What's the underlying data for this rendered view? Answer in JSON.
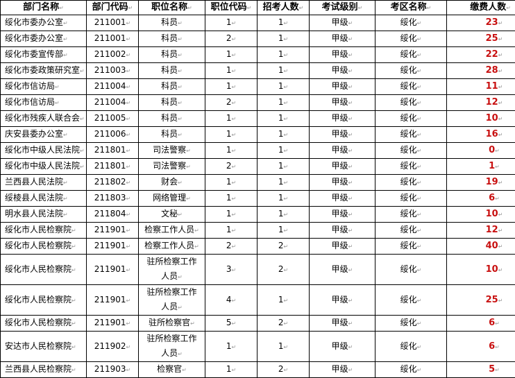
{
  "table": {
    "headers": [
      "部门名称",
      "部门代码",
      "职位名称",
      "职位代码",
      "招考人数",
      "考试级别",
      "考区名称",
      "缴费人数"
    ],
    "rows": [
      {
        "dept": "绥化市委办公室",
        "dept_code": "211001",
        "position": "科员",
        "pos_code": "1",
        "quota": "1",
        "level": "甲级",
        "area": "绥化",
        "paid": "23"
      },
      {
        "dept": "绥化市委办公室",
        "dept_code": "211001",
        "position": "科员",
        "pos_code": "2",
        "quota": "1",
        "level": "甲级",
        "area": "绥化",
        "paid": "25"
      },
      {
        "dept": "绥化市委宣传部",
        "dept_code": "211002",
        "position": "科员",
        "pos_code": "1",
        "quota": "1",
        "level": "甲级",
        "area": "绥化",
        "paid": "22"
      },
      {
        "dept": "绥化市委政策研究室",
        "dept_code": "211003",
        "position": "科员",
        "pos_code": "1",
        "quota": "1",
        "level": "甲级",
        "area": "绥化",
        "paid": "28"
      },
      {
        "dept": "绥化市信访局",
        "dept_code": "211004",
        "position": "科员",
        "pos_code": "1",
        "quota": "1",
        "level": "甲级",
        "area": "绥化",
        "paid": "11"
      },
      {
        "dept": "绥化市信访局",
        "dept_code": "211004",
        "position": "科员",
        "pos_code": "2",
        "quota": "1",
        "level": "甲级",
        "area": "绥化",
        "paid": "12"
      },
      {
        "dept": "绥化市残疾人联合会",
        "dept_code": "211005",
        "position": "科员",
        "pos_code": "1",
        "quota": "1",
        "level": "甲级",
        "area": "绥化",
        "paid": "10"
      },
      {
        "dept": "庆安县委办公室",
        "dept_code": "211006",
        "position": "科员",
        "pos_code": "1",
        "quota": "1",
        "level": "甲级",
        "area": "绥化",
        "paid": "16"
      },
      {
        "dept": "绥化市中级人民法院",
        "dept_code": "211801",
        "position": "司法警察",
        "pos_code": "1",
        "quota": "1",
        "level": "甲级",
        "area": "绥化",
        "paid": "0"
      },
      {
        "dept": "绥化市中级人民法院",
        "dept_code": "211801",
        "position": "司法警察",
        "pos_code": "2",
        "quota": "1",
        "level": "甲级",
        "area": "绥化",
        "paid": "1"
      },
      {
        "dept": "兰西县人民法院",
        "dept_code": "211802",
        "position": "财会",
        "pos_code": "1",
        "quota": "1",
        "level": "甲级",
        "area": "绥化",
        "paid": "19"
      },
      {
        "dept": "绥棱县人民法院",
        "dept_code": "211803",
        "position": "网络管理",
        "pos_code": "1",
        "quota": "1",
        "level": "甲级",
        "area": "绥化",
        "paid": "6"
      },
      {
        "dept": "明水县人民法院",
        "dept_code": "211804",
        "position": "文秘",
        "pos_code": "1",
        "quota": "1",
        "level": "甲级",
        "area": "绥化",
        "paid": "10"
      },
      {
        "dept": "绥化市人民检察院",
        "dept_code": "211901",
        "position": "检察工作人员",
        "pos_code": "1",
        "quota": "1",
        "level": "甲级",
        "area": "绥化",
        "paid": "12"
      },
      {
        "dept": "绥化市人民检察院",
        "dept_code": "211901",
        "position": "检察工作人员",
        "pos_code": "2",
        "quota": "2",
        "level": "甲级",
        "area": "绥化",
        "paid": "40"
      },
      {
        "dept": "绥化市人民检察院",
        "dept_code": "211901",
        "position": "驻所检察工作人员",
        "pos_code": "3",
        "quota": "2",
        "level": "甲级",
        "area": "绥化",
        "paid": "10"
      },
      {
        "dept": "绥化市人民检察院",
        "dept_code": "211901",
        "position": "驻所检察工作人员",
        "pos_code": "4",
        "quota": "1",
        "level": "甲级",
        "area": "绥化",
        "paid": "25"
      },
      {
        "dept": "绥化市人民检察院",
        "dept_code": "211901",
        "position": "驻所检察官",
        "pos_code": "5",
        "quota": "2",
        "level": "甲级",
        "area": "绥化",
        "paid": "6"
      },
      {
        "dept": "安达市人民检察院",
        "dept_code": "211902",
        "position": "驻所检察工作人员",
        "pos_code": "1",
        "quota": "1",
        "level": "甲级",
        "area": "绥化",
        "paid": "6"
      },
      {
        "dept": "兰西县人民检察院",
        "dept_code": "211903",
        "position": "检察官",
        "pos_code": "1",
        "quota": "2",
        "level": "甲级",
        "area": "绥化",
        "paid": "5"
      }
    ]
  },
  "colors": {
    "paid_text": "#c81010",
    "border": "#000000"
  }
}
